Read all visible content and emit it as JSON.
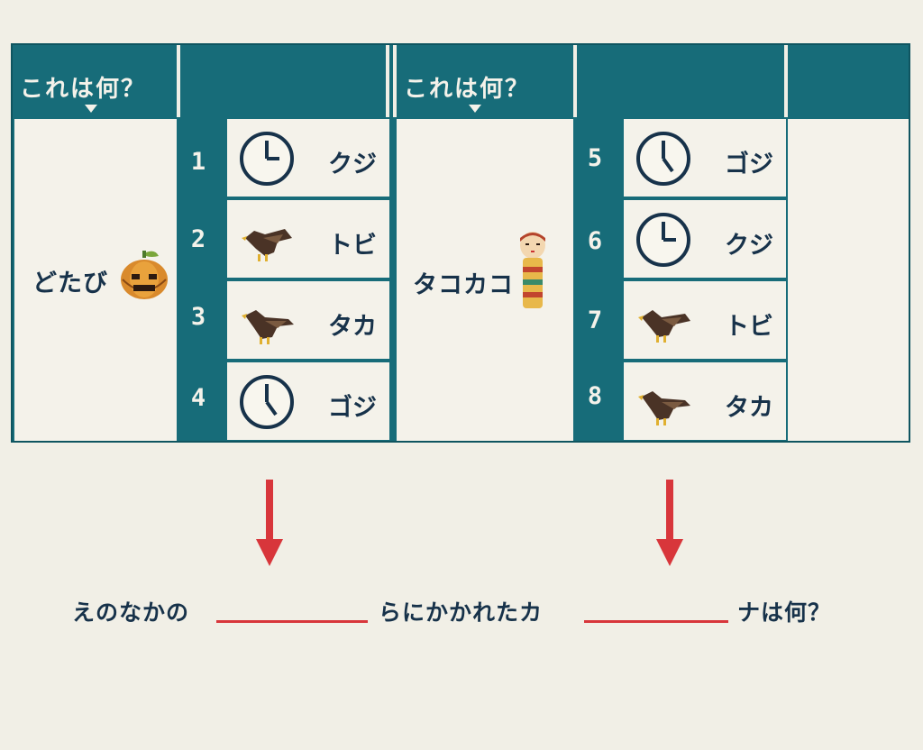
{
  "colors": {
    "board": "#176c79",
    "paper": "#f4f2ea",
    "ink": "#17324a",
    "accent": "#d8363b"
  },
  "left_panel": {
    "header": "これは何？",
    "subject": "どたび",
    "subject_icon": "pumpkin-icon",
    "options": [
      {
        "num": "1",
        "icon": "clock-icon",
        "label": "クジ"
      },
      {
        "num": "2",
        "icon": "bird-icon",
        "label": "トビ"
      },
      {
        "num": "3",
        "icon": "bird-icon",
        "label": "タカ"
      },
      {
        "num": "4",
        "icon": "clock-icon",
        "label": "ゴジ"
      }
    ]
  },
  "right_panel": {
    "header": "これは何？",
    "subject": "タコカコ",
    "subject_icon": "kokeshi-doll-icon",
    "options": [
      {
        "num": "5",
        "icon": "clock-icon",
        "label": "ゴジ"
      },
      {
        "num": "6",
        "icon": "clock-icon",
        "label": "クジ"
      },
      {
        "num": "7",
        "icon": "bird-icon",
        "label": "トビ"
      },
      {
        "num": "8",
        "icon": "bird-icon",
        "label": "タカ"
      }
    ]
  },
  "question": {
    "part1": "えのなかの",
    "part2": "らにかかれたカ",
    "part3": "ナは何？"
  }
}
